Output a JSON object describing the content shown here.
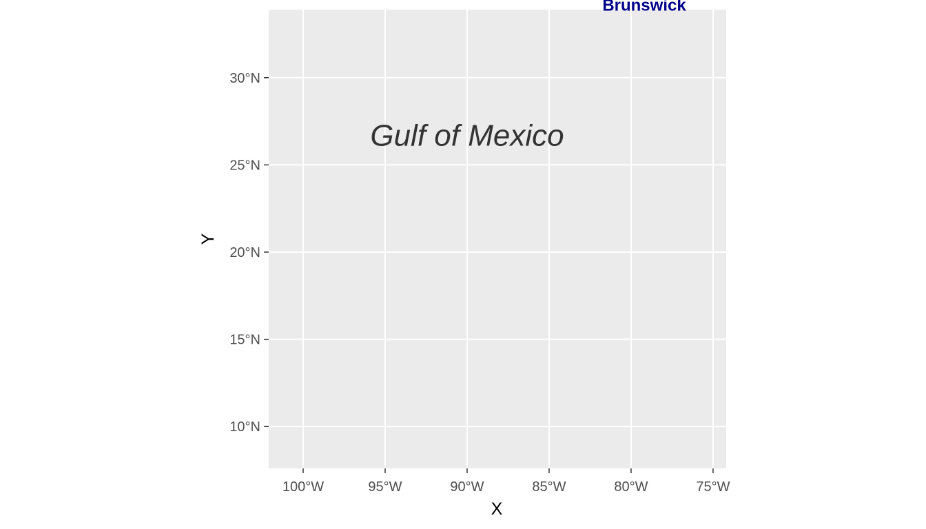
{
  "map": {
    "xlabel": "X",
    "ylabel": "Y",
    "xlim": [
      -102.1,
      -74.2
    ],
    "ylim": [
      7.6,
      33.9
    ],
    "x_ticks": [
      {
        "value": -100,
        "label": "100°W"
      },
      {
        "value": -95,
        "label": "95°W"
      },
      {
        "value": -90,
        "label": "90°W"
      },
      {
        "value": -85,
        "label": "85°W"
      },
      {
        "value": -80,
        "label": "80°W"
      },
      {
        "value": -75,
        "label": "75°W"
      }
    ],
    "y_ticks": [
      {
        "value": 10,
        "label": "10°N"
      },
      {
        "value": 15,
        "label": "15°N"
      },
      {
        "value": 20,
        "label": "20°N"
      },
      {
        "value": 25,
        "label": "25°N"
      },
      {
        "value": 30,
        "label": "30°N"
      }
    ],
    "sea_label": {
      "text": "Gulf of Mexico",
      "lon": -90,
      "lat": 26.1
    },
    "place_labels": [
      {
        "text": "Brunswick",
        "lon": -79.2,
        "lat": 33.85,
        "color": "#00008b"
      }
    ],
    "colors": {
      "panel": "#ebebeb",
      "grid": "#ffffff",
      "place": "#00008b"
    }
  }
}
